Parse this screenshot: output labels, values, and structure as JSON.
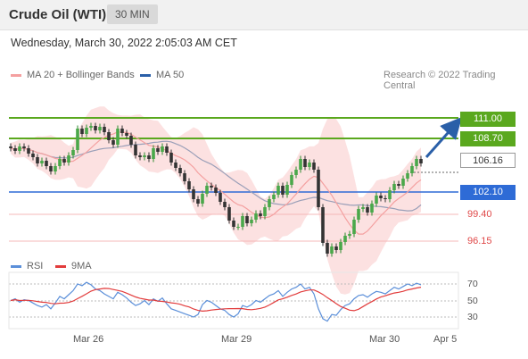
{
  "header": {
    "title": "Crude Oil (WTI)",
    "period": "30 MIN"
  },
  "datetime": "Wednesday, March 30, 2022 2:05:03 AM CET",
  "legend": {
    "ma20": "MA 20 + Bollinger Bands",
    "ma50": "MA 50",
    "credit": "Research © 2022 Trading Central",
    "rsi": "RSI",
    "ma9": "9MA"
  },
  "colors": {
    "resistance": "#5aa81e",
    "support": "#2e6bd6",
    "minor": "#f08080",
    "price": "#2d7a2d",
    "ma20": "#f4a0a0",
    "ma50": "#8a8fa8",
    "bollinger": "#fbdada",
    "rsi": "#5b8fd9",
    "rsi_ma9": "#e23c3c",
    "arrow": "#2a5fa8"
  },
  "levels": [
    {
      "label": "111.00",
      "type": "resistance"
    },
    {
      "label": "108.70",
      "type": "resistance"
    },
    {
      "label": "106.16",
      "type": "current"
    },
    {
      "label": "102.10",
      "type": "support"
    },
    {
      "label": "99.40",
      "type": "minor"
    },
    {
      "label": "96.15",
      "type": "minor"
    }
  ],
  "rsi_ticks": [
    "70",
    "50",
    "30"
  ],
  "x_ticks": [
    "Mar 26",
    "Mar 29",
    "Mar 30",
    "Apr 5"
  ],
  "chart_data": {
    "type": "candlestick",
    "close": [
      107.6,
      107.3,
      107.8,
      107.6,
      107.0,
      106.6,
      105.9,
      106.2,
      105.6,
      105.0,
      105.6,
      106.4,
      106.0,
      106.8,
      107.4,
      109.8,
      109.2,
      109.9,
      110.1,
      109.6,
      110.0,
      109.4,
      108.5,
      108.0,
      109.8,
      109.3,
      109.0,
      108.0,
      106.8,
      106.6,
      106.8,
      106.4,
      107.6,
      107.2,
      107.8,
      107.1,
      106.0,
      105.4,
      104.8,
      103.9,
      103.0,
      101.9,
      101.4,
      102.5,
      103.4,
      103.2,
      102.6,
      101.6,
      101.0,
      99.5,
      98.8,
      98.8,
      100.0,
      99.2,
      99.6,
      100.3,
      100.0,
      101.0,
      101.9,
      102.4,
      103.4,
      102.4,
      103.5,
      104.6,
      105.2,
      106.4,
      105.5,
      106.0,
      105.2,
      101.0,
      97.0,
      95.8,
      96.6,
      96.2,
      97.1,
      97.8,
      98.0,
      99.6,
      100.8,
      101.0,
      100.4,
      101.4,
      102.3,
      102.0,
      101.9,
      102.9,
      103.6,
      103.4,
      104.2,
      104.8,
      105.6,
      106.4,
      105.9
    ],
    "rsi": [
      50,
      52,
      48,
      51,
      50,
      47,
      44,
      42,
      45,
      40,
      47,
      55,
      52,
      57,
      62,
      70,
      68,
      72,
      69,
      64,
      62,
      58,
      55,
      52,
      60,
      57,
      53,
      48,
      44,
      46,
      50,
      45,
      52,
      49,
      53,
      46,
      40,
      38,
      36,
      34,
      32,
      30,
      33,
      45,
      50,
      48,
      44,
      40,
      38,
      33,
      30,
      34,
      44,
      42,
      45,
      50,
      48,
      52,
      56,
      58,
      62,
      55,
      60,
      64,
      66,
      70,
      64,
      66,
      58,
      40,
      28,
      25,
      33,
      32,
      39,
      44,
      46,
      52,
      56,
      57,
      54,
      58,
      61,
      60,
      58,
      62,
      66,
      64,
      67,
      70,
      68,
      71,
      69
    ],
    "rsi_range": [
      0,
      100
    ]
  }
}
